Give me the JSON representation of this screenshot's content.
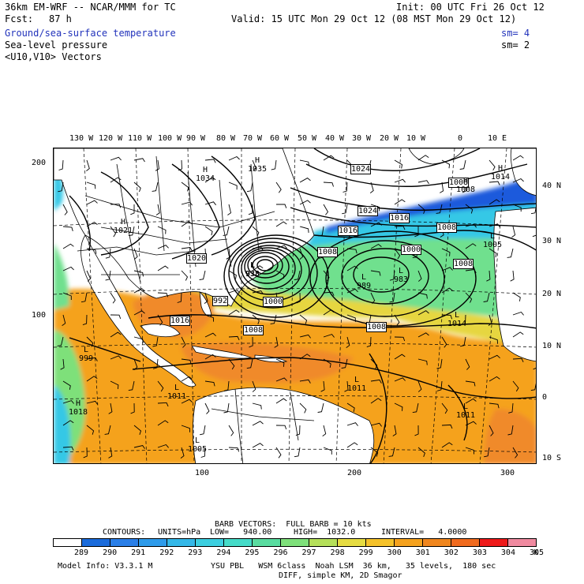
{
  "header": {
    "model_line": "36km EM-WRF -- NCAR/MMM for TC",
    "init_line": "Init: 00 UTC Fri 26 Oct 12",
    "fcst_label": "Fcst:",
    "fcst_value": "87 h",
    "valid_line": "Valid: 15 UTC Mon 29 Oct 12 (08 MST Mon 29 Oct 12)",
    "fields": [
      {
        "name": "Ground/sea-surface temperature",
        "sm": "sm= 4",
        "color": "#2233bb"
      },
      {
        "name": "Sea-level pressure",
        "sm": "sm= 2",
        "color": "#000000"
      },
      {
        "name": "<U10,V10> Vectors",
        "sm": "",
        "color": "#000000"
      }
    ]
  },
  "map": {
    "top_axis": [
      "130 W",
      "120 W",
      "110 W",
      "100 W",
      "90 W",
      "80 W",
      "70 W",
      "60 W",
      "50 W",
      "40 W",
      "30 W",
      "20 W",
      "10 W",
      "0",
      "10 E"
    ],
    "right_axis": [
      "40 N",
      "30 N",
      "20 N",
      "10 N",
      "0",
      "10 S"
    ],
    "left_axis": [
      "200",
      "100"
    ],
    "bottom_axis": [
      "100",
      "200",
      "300"
    ],
    "isobar_labels_boxed": [
      "1024",
      "1020",
      "1024",
      "1016",
      "1016",
      "1008",
      "1008",
      "1008",
      "1000",
      "1000",
      "1008",
      "992",
      "1016",
      "1008",
      "1008"
    ],
    "pressure_centers": [
      {
        "type": "H",
        "value": "1034"
      },
      {
        "type": "H",
        "value": "1021"
      },
      {
        "type": "H",
        "value": "1035"
      },
      {
        "type": "L",
        "value": "938"
      },
      {
        "type": "L",
        "value": "989"
      },
      {
        "type": "L",
        "value": "983"
      },
      {
        "type": "L",
        "value": "1005"
      },
      {
        "type": "L",
        "value": "1014"
      },
      {
        "type": "H",
        "value": "1014"
      },
      {
        "type": "L",
        "value": "1011"
      },
      {
        "type": "L",
        "value": "1011"
      },
      {
        "type": "L",
        "value": "1011"
      },
      {
        "type": "L",
        "value": "999"
      },
      {
        "type": "L",
        "value": "1005"
      },
      {
        "type": "H",
        "value": "1018"
      },
      {
        "type": "H",
        "value": "1008"
      }
    ],
    "colors": {
      "land": "#ffffff",
      "sst_289": "#1e5adc",
      "sst_293": "#34c8e6",
      "sst_297": "#6fe08e",
      "sst_299": "#e6d640",
      "sst_301": "#f5a21e",
      "sst_302": "#f08a2a"
    }
  },
  "footer": {
    "barb_line": "BARB VECTORS:  FULL BARB = 10 kts",
    "contours_label": "CONTOURS:",
    "units": "UNITS=hPa",
    "low": "LOW=   940.00",
    "high": "HIGH=  1032.0",
    "interval": "INTERVAL=   4.0000",
    "colorbar_values": [
      "289",
      "290",
      "291",
      "292",
      "293",
      "294",
      "295",
      "296",
      "297",
      "298",
      "299",
      "300",
      "301",
      "302",
      "303",
      "304",
      "305"
    ],
    "colorbar_unit": "K",
    "colorbar_colors": [
      "#ffffff",
      "#1a6bdb",
      "#2a7fe8",
      "#2e9bea",
      "#34b8e8",
      "#3ccfe0",
      "#45dbc8",
      "#59dca0",
      "#7ee07a",
      "#b5e05a",
      "#e6dc42",
      "#f5c22a",
      "#f5a21e",
      "#f0861e",
      "#f06a1e",
      "#ee1a1a",
      "#f08aa0"
    ],
    "model_info_label": "Model Info: V3.3.1 M",
    "physics": "YSU PBL   WSM 6class  Noah LSM  36 km,   35 levels,  180 sec",
    "diff": "DIFF, simple KM, 2D Smagor"
  }
}
